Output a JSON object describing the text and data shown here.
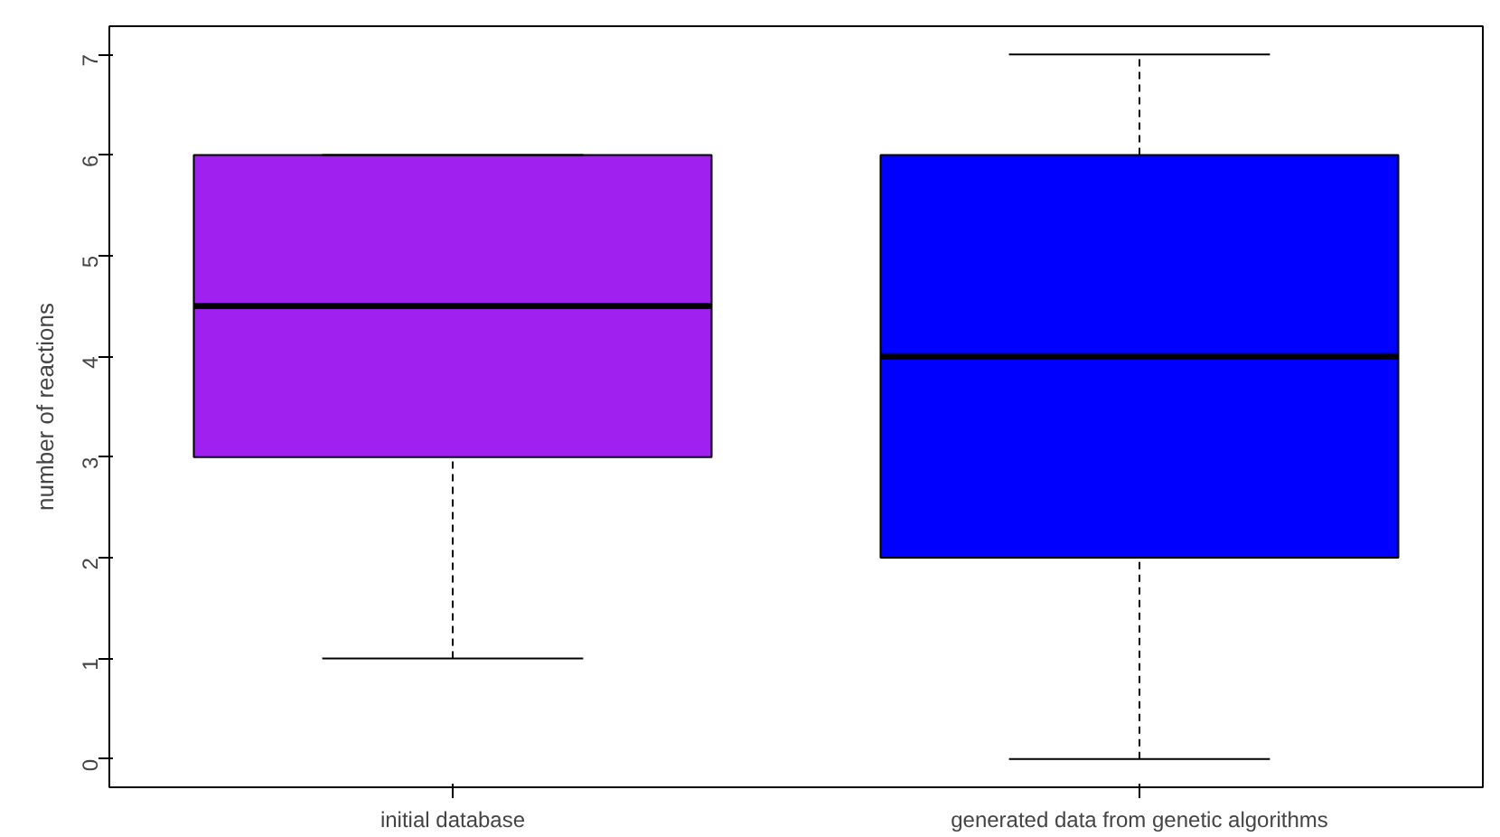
{
  "chart_data": {
    "type": "box",
    "ylabel": "number of reactions",
    "categories": [
      "initial database",
      "generated data from genetic algorithms"
    ],
    "boxes": [
      {
        "low": 1,
        "q1": 3,
        "median": 4.5,
        "q3": 6,
        "high": 6
      },
      {
        "low": 0,
        "q1": 2,
        "median": 4,
        "q3": 6,
        "high": 7
      }
    ],
    "colors": [
      "#a020f0",
      "#0000ff"
    ],
    "ylim": [
      -0.28,
      7.28
    ],
    "yticks": [
      0,
      1,
      2,
      3,
      4,
      5,
      6,
      7
    ],
    "grid": false
  }
}
